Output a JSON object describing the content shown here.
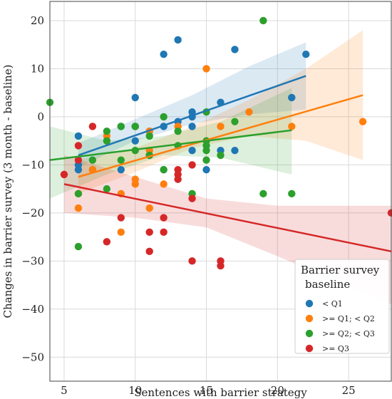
{
  "chart_data": {
    "type": "scatter",
    "title": "",
    "xlabel": "Sentences with barrier strategy",
    "ylabel": "Changes in barrier survey (3 month - baseline)",
    "xlim": [
      4,
      28
    ],
    "ylim": [
      -55,
      24
    ],
    "xticks": [
      5,
      10,
      15,
      20,
      25
    ],
    "yticks": [
      -50,
      -40,
      -30,
      -20,
      -10,
      0,
      10,
      20
    ],
    "grid": true,
    "legend": {
      "title": "Barrier survey\nbaseline",
      "placement": "bottom-right"
    },
    "series": [
      {
        "name": "< Q1",
        "color": "#1f77b4",
        "points": [
          [
            6,
            -4
          ],
          [
            6,
            -10
          ],
          [
            6,
            -11
          ],
          [
            7,
            -11
          ],
          [
            9,
            -2
          ],
          [
            9,
            -11
          ],
          [
            10,
            4
          ],
          [
            10,
            -2
          ],
          [
            10,
            -5
          ],
          [
            11,
            -3
          ],
          [
            11,
            -8
          ],
          [
            12,
            13
          ],
          [
            12,
            -2
          ],
          [
            12,
            -11
          ],
          [
            13,
            16
          ],
          [
            13,
            -1
          ],
          [
            14,
            1
          ],
          [
            14,
            0
          ],
          [
            14,
            -2
          ],
          [
            14,
            -7
          ],
          [
            15,
            -11
          ],
          [
            16,
            3
          ],
          [
            16,
            -7
          ],
          [
            17,
            14
          ],
          [
            17,
            -7
          ],
          [
            21,
            4
          ],
          [
            22,
            13
          ]
        ],
        "fit": {
          "x": [
            6,
            22
          ],
          "y": [
            -8,
            8.5
          ]
        },
        "band": [
          [
            6,
            -5.5,
            -10.5
          ],
          [
            10,
            -0.5,
            -5
          ],
          [
            14,
            4.5,
            -1.5
          ],
          [
            18,
            10.5,
            0.5
          ],
          [
            22,
            15.5,
            1.5
          ]
        ]
      },
      {
        "name": ">= Q1; < Q2",
        "color": "#ff7f0e",
        "points": [
          [
            6,
            -16
          ],
          [
            6,
            -19
          ],
          [
            7,
            -11
          ],
          [
            8,
            -4
          ],
          [
            8,
            -5
          ],
          [
            9,
            -16
          ],
          [
            9,
            -24
          ],
          [
            10,
            -13
          ],
          [
            10,
            -14
          ],
          [
            11,
            -3
          ],
          [
            11,
            -7
          ],
          [
            11,
            -19
          ],
          [
            12,
            -14
          ],
          [
            13,
            -2
          ],
          [
            15,
            10
          ],
          [
            16,
            -2
          ],
          [
            18,
            1
          ],
          [
            21,
            -2
          ],
          [
            26,
            -1
          ]
        ],
        "fit": {
          "x": [
            6,
            26
          ],
          "y": [
            -12.5,
            4.5
          ]
        },
        "band": [
          [
            6,
            -9,
            -16
          ],
          [
            10,
            -6.5,
            -11.5
          ],
          [
            14,
            -2,
            -6.5
          ],
          [
            18,
            3.5,
            -4
          ],
          [
            22,
            10,
            -5
          ],
          [
            26,
            18,
            -9
          ]
        ]
      },
      {
        "name": ">= Q2; < Q3",
        "color": "#2ca02c",
        "points": [
          [
            4,
            3
          ],
          [
            6,
            -16
          ],
          [
            6,
            -27
          ],
          [
            7,
            -9
          ],
          [
            8,
            -3
          ],
          [
            8,
            -5
          ],
          [
            8,
            -15
          ],
          [
            9,
            -2
          ],
          [
            9,
            -9
          ],
          [
            10,
            -2
          ],
          [
            10,
            -7
          ],
          [
            11,
            -4
          ],
          [
            11,
            -8
          ],
          [
            12,
            0
          ],
          [
            12,
            -11
          ],
          [
            13,
            -3
          ],
          [
            13,
            -6
          ],
          [
            14,
            -16
          ],
          [
            15,
            1
          ],
          [
            15,
            -5
          ],
          [
            15,
            -6
          ],
          [
            15,
            -7
          ],
          [
            15,
            -9
          ],
          [
            16,
            -8
          ],
          [
            17,
            -1
          ],
          [
            19,
            20
          ],
          [
            19,
            -16
          ],
          [
            21,
            -16
          ]
        ],
        "fit": {
          "x": [
            4,
            21
          ],
          "y": [
            -9,
            -2.8
          ]
        },
        "band": [
          [
            4,
            -2,
            -17
          ],
          [
            8,
            -5,
            -12
          ],
          [
            12,
            -4,
            -8
          ],
          [
            16,
            -1,
            -8.5
          ],
          [
            21,
            6,
            -12
          ]
        ]
      },
      {
        "name": ">= Q3",
        "color": "#d62728",
        "points": [
          [
            5,
            -12
          ],
          [
            6,
            -6
          ],
          [
            6,
            -9
          ],
          [
            7,
            -2
          ],
          [
            8,
            -26
          ],
          [
            9,
            -21
          ],
          [
            11,
            -24
          ],
          [
            11,
            -28
          ],
          [
            12,
            -21
          ],
          [
            12,
            -24
          ],
          [
            13,
            -11
          ],
          [
            13,
            -12
          ],
          [
            13,
            -13
          ],
          [
            14,
            -10
          ],
          [
            14,
            -17
          ],
          [
            14,
            -30
          ],
          [
            16,
            -30
          ],
          [
            16,
            -31
          ],
          [
            28,
            -20
          ]
        ],
        "fit": {
          "x": [
            5,
            28
          ],
          "y": [
            -14,
            -28
          ]
        },
        "band": [
          [
            5,
            -8,
            -20
          ],
          [
            10,
            -12.5,
            -21
          ],
          [
            15,
            -17,
            -23
          ],
          [
            20,
            -18.5,
            -29
          ],
          [
            28,
            -18.5,
            -39
          ]
        ]
      }
    ]
  }
}
